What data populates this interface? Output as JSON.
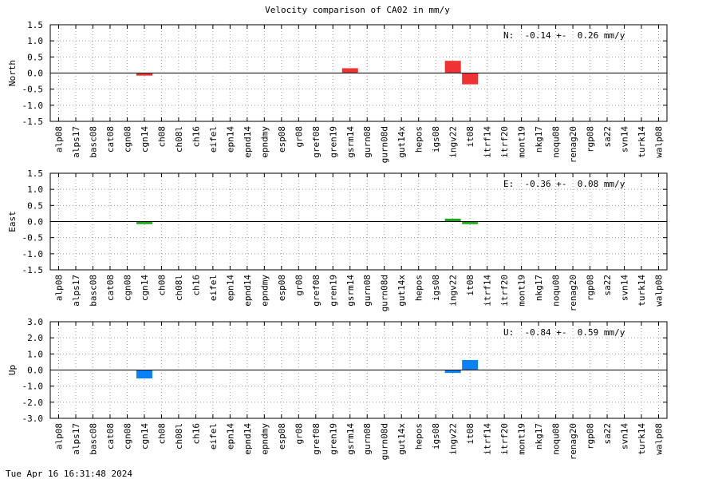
{
  "chart_data": {
    "type": "bar",
    "title": "Velocity comparison of CA02 in mm/y",
    "timestamp": "Tue Apr 16 16:31:48 2024",
    "categories": [
      "alp08",
      "alps17",
      "basc08",
      "cat08",
      "cgn08",
      "cgn14",
      "ch08",
      "ch08l",
      "ch16",
      "eifel",
      "epn14",
      "epnd14",
      "epndmy",
      "esp08",
      "gr08",
      "gref08",
      "gren19",
      "gsrm14",
      "gurn08",
      "gurn08d",
      "gut14x",
      "hepos",
      "igs08",
      "ingv22",
      "it08",
      "itrf14",
      "itrf20",
      "mont19",
      "nkg17",
      "noqu08",
      "renag20",
      "rgp08",
      "sa22",
      "svn14",
      "turk14",
      "walp08"
    ],
    "grid": true,
    "panels": [
      {
        "ylabel": "North",
        "ylim": [
          -1.5,
          1.5
        ],
        "yticks": [
          1.5,
          1.0,
          0.5,
          0.0,
          -0.5,
          -1.0,
          -1.5
        ],
        "tick_labels": [
          "1.5",
          "1.0",
          "0.5",
          "0.0",
          "-0.5",
          "-1.0",
          "-1.5"
        ],
        "annotation": "N:  -0.14 +-  0.26 mm/y",
        "color": "#f03232",
        "bars": [
          {
            "category": "cgn14",
            "value": -0.08
          },
          {
            "category": "gsrm14",
            "value": 0.15
          },
          {
            "category": "ingv22",
            "value": 0.38
          },
          {
            "category": "it08",
            "value": -0.35
          }
        ]
      },
      {
        "ylabel": "East",
        "ylim": [
          -1.5,
          1.5
        ],
        "yticks": [
          1.5,
          1.0,
          0.5,
          0.0,
          -0.5,
          -1.0,
          -1.5
        ],
        "tick_labels": [
          "1.5",
          "1.0",
          "0.5",
          "0.0",
          "-0.5",
          "-1.0",
          "-1.5"
        ],
        "annotation": "E:  -0.36 +-  0.08 mm/y",
        "color": "#1aaa1a",
        "bars": [
          {
            "category": "cgn14",
            "value": -0.08
          },
          {
            "category": "ingv22",
            "value": 0.09
          },
          {
            "category": "it08",
            "value": -0.08
          }
        ]
      },
      {
        "ylabel": "Up",
        "ylim": [
          -3.0,
          3.0
        ],
        "yticks": [
          3.0,
          2.0,
          1.0,
          0.0,
          -1.0,
          -2.0,
          -3.0
        ],
        "tick_labels": [
          "3.0",
          "2.0",
          "1.0",
          "0.0",
          "-1.0",
          "-2.0",
          "-3.0"
        ],
        "annotation": "U:  -0.84 +-  0.59 mm/y",
        "color": "#0a82f5",
        "bars": [
          {
            "category": "cgn14",
            "value": -0.52
          },
          {
            "category": "ingv22",
            "value": -0.18
          },
          {
            "category": "it08",
            "value": 0.62
          }
        ]
      }
    ]
  }
}
